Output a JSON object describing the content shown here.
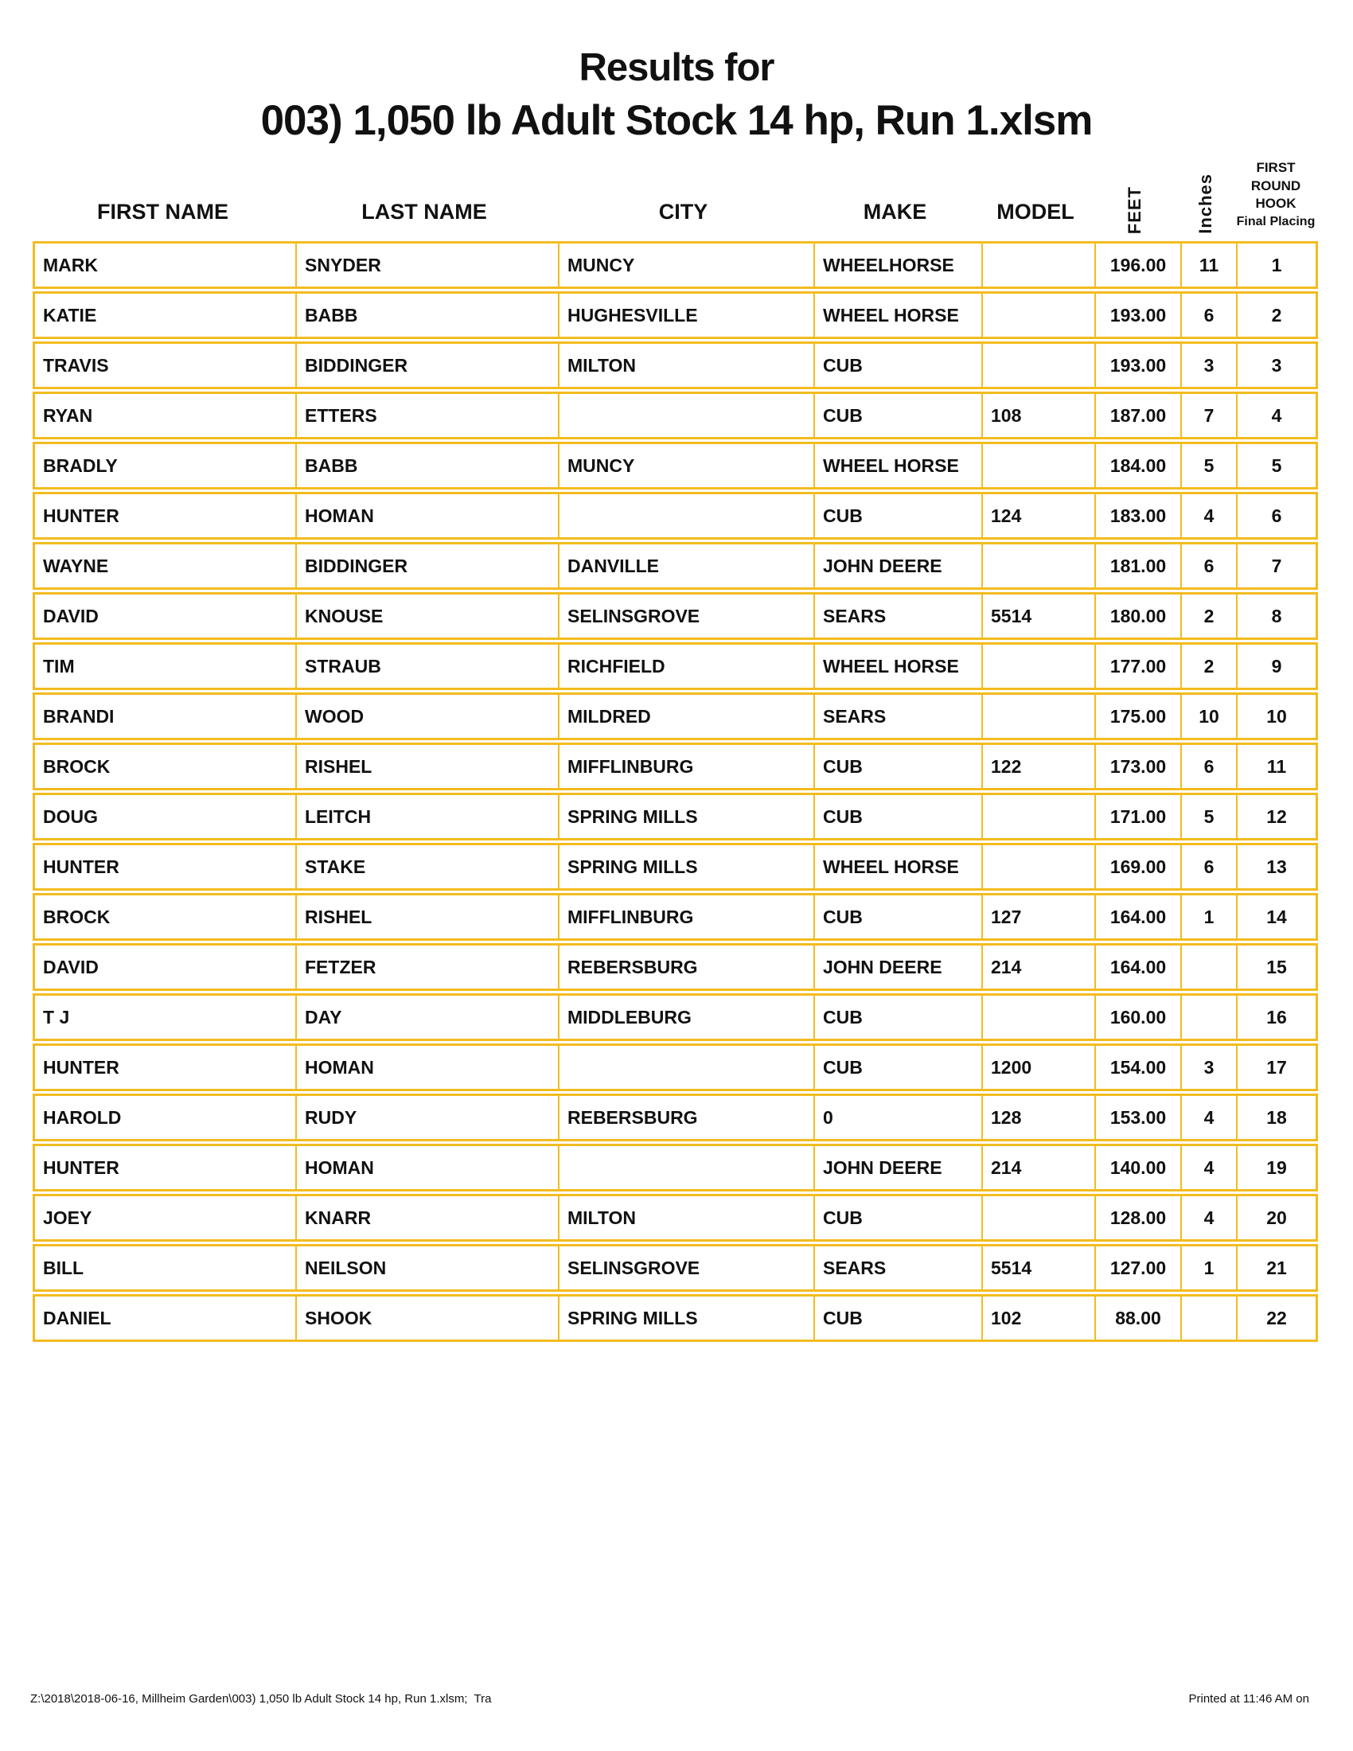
{
  "page": {
    "title": "Results for",
    "subtitle": "003) 1,050 lb Adult Stock 14 hp, Run 1.xlsm",
    "footer_left": "Z:\\2018\\2018-06-16, Millheim Garden\\003) 1,050 lb Adult Stock 14 hp, Run 1.xlsm;  Tra",
    "footer_right": "Printed at 11:46 AM on"
  },
  "table": {
    "border_color": "#F2BC20",
    "columns": [
      {
        "key": "first_name",
        "label": "FIRST NAME"
      },
      {
        "key": "last_name",
        "label": "LAST NAME"
      },
      {
        "key": "city",
        "label": "CITY"
      },
      {
        "key": "make",
        "label": "MAKE"
      },
      {
        "key": "model",
        "label": "MODEL"
      },
      {
        "key": "feet",
        "label": "FEET",
        "rotated": true
      },
      {
        "key": "inches",
        "label": "Inches",
        "rotated": true
      },
      {
        "key": "final_placing",
        "label_lines": [
          "FIRST ROUND",
          "HOOK",
          "Final Placing"
        ]
      }
    ],
    "rows": [
      [
        "MARK",
        "SNYDER",
        "MUNCY",
        "WHEELHORSE",
        "",
        "196.00",
        "11",
        "1"
      ],
      [
        "KATIE",
        "BABB",
        "HUGHESVILLE",
        "WHEEL HORSE",
        "",
        "193.00",
        "6",
        "2"
      ],
      [
        "TRAVIS",
        "BIDDINGER",
        "MILTON",
        "CUB",
        "",
        "193.00",
        "3",
        "3"
      ],
      [
        "RYAN",
        "ETTERS",
        "",
        "CUB",
        "108",
        "187.00",
        "7",
        "4"
      ],
      [
        "BRADLY",
        "BABB",
        "MUNCY",
        "WHEEL HORSE",
        "",
        "184.00",
        "5",
        "5"
      ],
      [
        "HUNTER",
        "HOMAN",
        "",
        "CUB",
        "124",
        "183.00",
        "4",
        "6"
      ],
      [
        "WAYNE",
        "BIDDINGER",
        "DANVILLE",
        "JOHN DEERE",
        "",
        "181.00",
        "6",
        "7"
      ],
      [
        "DAVID",
        "KNOUSE",
        "SELINSGROVE",
        "SEARS",
        "5514",
        "180.00",
        "2",
        "8"
      ],
      [
        "TIM",
        "STRAUB",
        "RICHFIELD",
        "WHEEL HORSE",
        "",
        "177.00",
        "2",
        "9"
      ],
      [
        "BRANDI",
        "WOOD",
        "MILDRED",
        "SEARS",
        "",
        "175.00",
        "10",
        "10"
      ],
      [
        "BROCK",
        "RISHEL",
        "MIFFLINBURG",
        "CUB",
        "122",
        "173.00",
        "6",
        "11"
      ],
      [
        "DOUG",
        "LEITCH",
        "SPRING MILLS",
        "CUB",
        "",
        "171.00",
        "5",
        "12"
      ],
      [
        "HUNTER",
        "STAKE",
        "SPRING MILLS",
        "WHEEL HORSE",
        "",
        "169.00",
        "6",
        "13"
      ],
      [
        "BROCK",
        "RISHEL",
        "MIFFLINBURG",
        "CUB",
        "127",
        "164.00",
        "1",
        "14"
      ],
      [
        "DAVID",
        "FETZER",
        "REBERSBURG",
        "JOHN DEERE",
        "214",
        "164.00",
        "",
        "15"
      ],
      [
        "T J",
        "DAY",
        "MIDDLEBURG",
        "CUB",
        "",
        "160.00",
        "",
        "16"
      ],
      [
        "HUNTER",
        "HOMAN",
        "",
        "CUB",
        "1200",
        "154.00",
        "3",
        "17"
      ],
      [
        "HAROLD",
        "RUDY",
        "REBERSBURG",
        "0",
        "128",
        "153.00",
        "4",
        "18"
      ],
      [
        "HUNTER",
        "HOMAN",
        "",
        "JOHN DEERE",
        "214",
        "140.00",
        "4",
        "19"
      ],
      [
        "JOEY",
        "KNARR",
        "MILTON",
        "CUB",
        "",
        "128.00",
        "4",
        "20"
      ],
      [
        "BILL",
        "NEILSON",
        "SELINSGROVE",
        "SEARS",
        "5514",
        "127.00",
        "1",
        "21"
      ],
      [
        "DANIEL",
        "SHOOK",
        "SPRING MILLS",
        "CUB",
        "102",
        "88.00",
        "",
        "22"
      ]
    ]
  }
}
